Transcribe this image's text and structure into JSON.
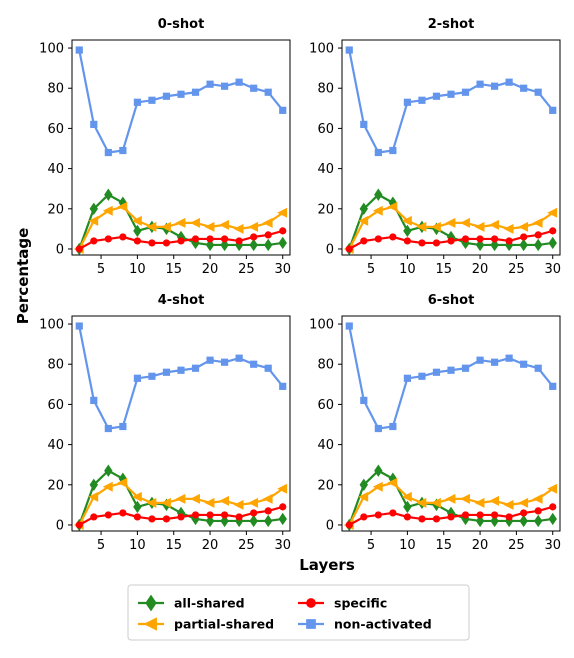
{
  "figure": {
    "xlabel": "Layers",
    "ylabel": "Percentage"
  },
  "legend": {
    "placement": "bottom-center",
    "entries": [
      "all-shared",
      "partial-shared",
      "specific",
      "non-activated"
    ]
  },
  "colors": {
    "all-shared": "#228b22",
    "partial-shared": "#ffa500",
    "specific": "#ff0000",
    "non-activated": "#6495ed"
  },
  "chart_data": [
    {
      "type": "line",
      "title": "0-shot",
      "xlabel": "",
      "ylabel": "",
      "xlim": [
        1,
        31
      ],
      "ylim": [
        -3,
        104
      ],
      "xticks": [
        5,
        10,
        15,
        20,
        25,
        30
      ],
      "yticks": [
        0,
        20,
        40,
        60,
        80,
        100
      ],
      "grid": false,
      "x": [
        2,
        4,
        6,
        8,
        10,
        12,
        14,
        16,
        18,
        20,
        22,
        24,
        26,
        28,
        30
      ],
      "series": [
        {
          "name": "all-shared",
          "marker": "diamond",
          "values": [
            0,
            20,
            27,
            23,
            9,
            11,
            10,
            6,
            3,
            2,
            2,
            2,
            2,
            2,
            3
          ]
        },
        {
          "name": "partial-shared",
          "marker": "triangle-left",
          "values": [
            0,
            14,
            19,
            21,
            14,
            11,
            11,
            13,
            13,
            11,
            12,
            10,
            11,
            13,
            18
          ]
        },
        {
          "name": "specific",
          "marker": "circle",
          "values": [
            0,
            4,
            5,
            6,
            4,
            3,
            3,
            4,
            5,
            5,
            5,
            4,
            6,
            7,
            9
          ]
        },
        {
          "name": "non-activated",
          "marker": "square",
          "values": [
            99,
            62,
            48,
            49,
            73,
            74,
            76,
            77,
            78,
            82,
            81,
            83,
            80,
            78,
            69
          ]
        }
      ]
    },
    {
      "type": "line",
      "title": "2-shot",
      "xlabel": "",
      "ylabel": "",
      "xlim": [
        1,
        31
      ],
      "ylim": [
        -3,
        104
      ],
      "xticks": [
        5,
        10,
        15,
        20,
        25,
        30
      ],
      "yticks": [
        0,
        20,
        40,
        60,
        80,
        100
      ],
      "grid": false,
      "x": [
        2,
        4,
        6,
        8,
        10,
        12,
        14,
        16,
        18,
        20,
        22,
        24,
        26,
        28,
        30
      ],
      "series": [
        {
          "name": "all-shared",
          "marker": "diamond",
          "values": [
            0,
            20,
            27,
            23,
            9,
            11,
            10,
            6,
            3,
            2,
            2,
            2,
            2,
            2,
            3
          ]
        },
        {
          "name": "partial-shared",
          "marker": "triangle-left",
          "values": [
            0,
            14,
            19,
            21,
            14,
            11,
            11,
            13,
            13,
            11,
            12,
            10,
            11,
            13,
            18
          ]
        },
        {
          "name": "specific",
          "marker": "circle",
          "values": [
            0,
            4,
            5,
            6,
            4,
            3,
            3,
            4,
            5,
            5,
            5,
            4,
            6,
            7,
            9
          ]
        },
        {
          "name": "non-activated",
          "marker": "square",
          "values": [
            99,
            62,
            48,
            49,
            73,
            74,
            76,
            77,
            78,
            82,
            81,
            83,
            80,
            78,
            69
          ]
        }
      ]
    },
    {
      "type": "line",
      "title": "4-shot",
      "xlabel": "",
      "ylabel": "",
      "xlim": [
        1,
        31
      ],
      "ylim": [
        -3,
        104
      ],
      "xticks": [
        5,
        10,
        15,
        20,
        25,
        30
      ],
      "yticks": [
        0,
        20,
        40,
        60,
        80,
        100
      ],
      "grid": false,
      "x": [
        2,
        4,
        6,
        8,
        10,
        12,
        14,
        16,
        18,
        20,
        22,
        24,
        26,
        28,
        30
      ],
      "series": [
        {
          "name": "all-shared",
          "marker": "diamond",
          "values": [
            0,
            20,
            27,
            23,
            9,
            11,
            10,
            6,
            3,
            2,
            2,
            2,
            2,
            2,
            3
          ]
        },
        {
          "name": "partial-shared",
          "marker": "triangle-left",
          "values": [
            0,
            14,
            19,
            21,
            14,
            11,
            11,
            13,
            13,
            11,
            12,
            10,
            11,
            13,
            18
          ]
        },
        {
          "name": "specific",
          "marker": "circle",
          "values": [
            0,
            4,
            5,
            6,
            4,
            3,
            3,
            4,
            5,
            5,
            5,
            4,
            6,
            7,
            9
          ]
        },
        {
          "name": "non-activated",
          "marker": "square",
          "values": [
            99,
            62,
            48,
            49,
            73,
            74,
            76,
            77,
            78,
            82,
            81,
            83,
            80,
            78,
            69
          ]
        }
      ]
    },
    {
      "type": "line",
      "title": "6-shot",
      "xlabel": "",
      "ylabel": "",
      "xlim": [
        1,
        31
      ],
      "ylim": [
        -3,
        104
      ],
      "xticks": [
        5,
        10,
        15,
        20,
        25,
        30
      ],
      "yticks": [
        0,
        20,
        40,
        60,
        80,
        100
      ],
      "grid": false,
      "x": [
        2,
        4,
        6,
        8,
        10,
        12,
        14,
        16,
        18,
        20,
        22,
        24,
        26,
        28,
        30
      ],
      "series": [
        {
          "name": "all-shared",
          "marker": "diamond",
          "values": [
            0,
            20,
            27,
            23,
            9,
            11,
            10,
            6,
            3,
            2,
            2,
            2,
            2,
            2,
            3
          ]
        },
        {
          "name": "partial-shared",
          "marker": "triangle-left",
          "values": [
            0,
            14,
            19,
            21,
            14,
            11,
            11,
            13,
            13,
            11,
            12,
            10,
            11,
            13,
            18
          ]
        },
        {
          "name": "specific",
          "marker": "circle",
          "values": [
            0,
            4,
            5,
            6,
            4,
            3,
            3,
            4,
            5,
            5,
            5,
            4,
            6,
            7,
            9
          ]
        },
        {
          "name": "non-activated",
          "marker": "square",
          "values": [
            99,
            62,
            48,
            49,
            73,
            74,
            76,
            77,
            78,
            82,
            81,
            83,
            80,
            78,
            69
          ]
        }
      ]
    }
  ]
}
